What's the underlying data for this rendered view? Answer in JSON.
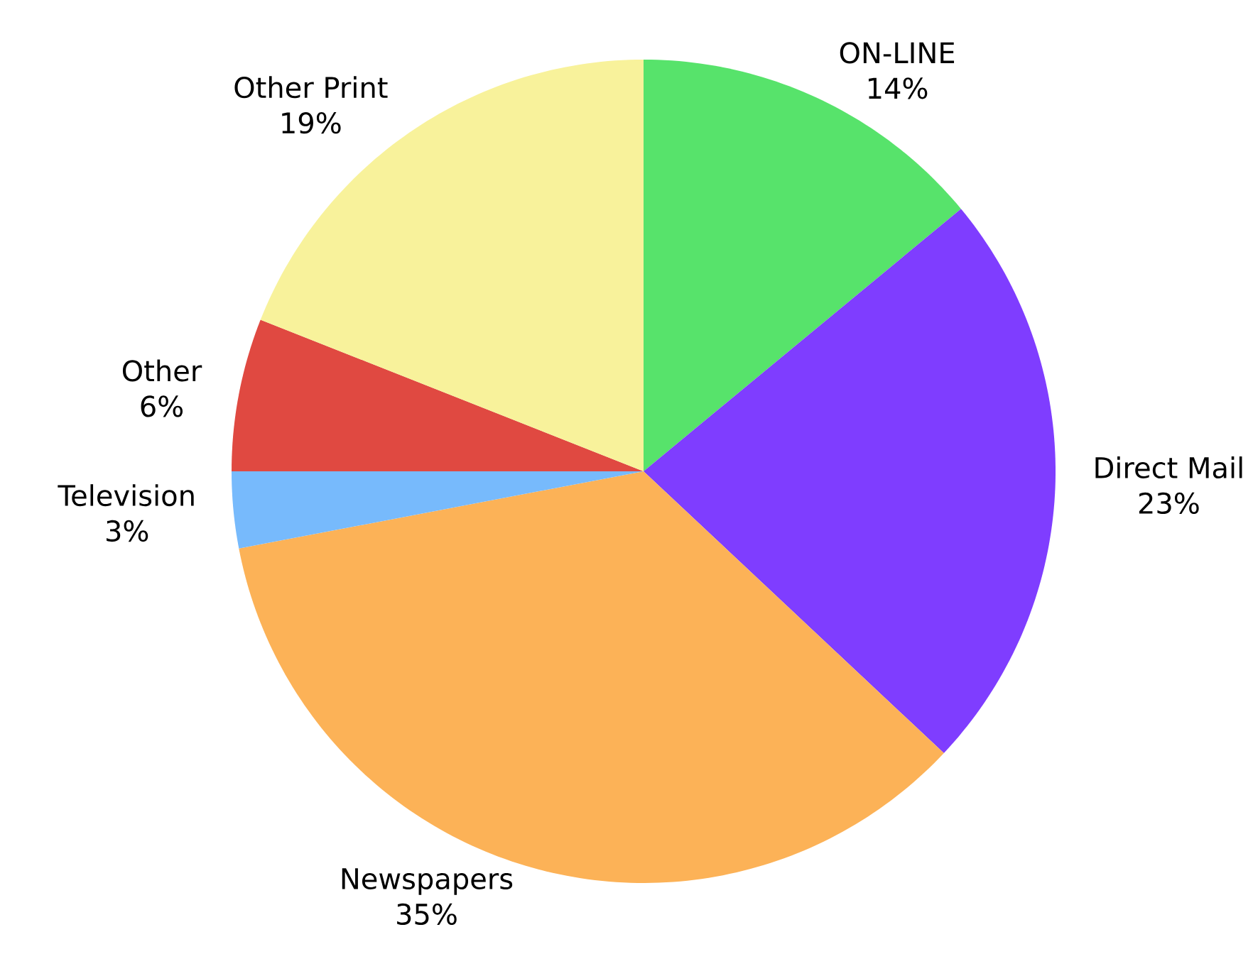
{
  "chart_data": {
    "type": "pie",
    "categories": [
      "ON-LINE",
      "Direct Mail",
      "Newspapers",
      "Television",
      "Other",
      "Other Print"
    ],
    "values": [
      14,
      23,
      35,
      3,
      6,
      19
    ],
    "value_labels": [
      "14%",
      "23%",
      "35%",
      "3%",
      "6%",
      "19%"
    ],
    "colors": [
      "#57e36b",
      "#7f3dff",
      "#fcb257",
      "#77bafc",
      "#e04941",
      "#f8f29b"
    ]
  }
}
